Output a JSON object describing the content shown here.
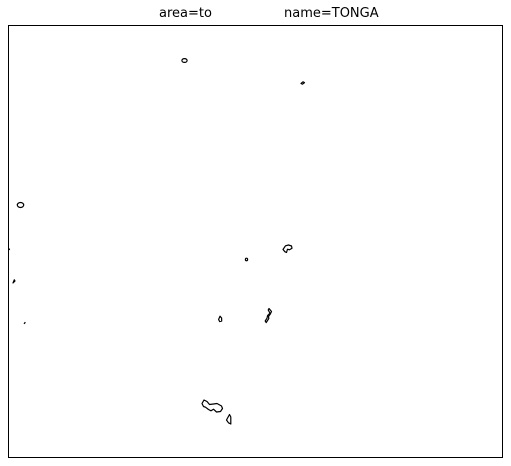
{
  "title": {
    "area_label": "area=to",
    "name_label": "name=TONGA"
  },
  "map": {
    "outline_color": "#000000",
    "background_color": "#ffffff",
    "frame_color": "#000000"
  }
}
